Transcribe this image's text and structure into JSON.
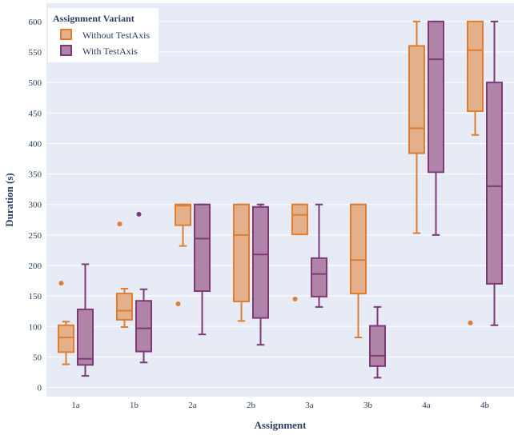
{
  "chart_data": {
    "type": "box",
    "xlabel": "Assignment",
    "ylabel": "Duration (s)",
    "ylim": [
      -15,
      630
    ],
    "yticks": [
      0,
      50,
      100,
      150,
      200,
      250,
      300,
      350,
      400,
      450,
      500,
      550,
      600
    ],
    "categories": [
      "1a",
      "1b",
      "2a",
      "2b",
      "3a",
      "3b",
      "4a",
      "4b"
    ],
    "legend": {
      "title": "Assignment Variant",
      "position": "top-left"
    },
    "grid": true,
    "series": [
      {
        "name": "Without TestAxis",
        "color": "#dd7e32",
        "fill": "#e3b08a",
        "boxes": [
          {
            "min": 38,
            "q1": 58,
            "median": 82,
            "q3": 102,
            "max": 108,
            "outliers": [
              171
            ]
          },
          {
            "min": 99,
            "q1": 111,
            "median": 126,
            "q3": 154,
            "max": 162,
            "outliers": [
              268
            ]
          },
          {
            "min": 232,
            "q1": 266,
            "median": 298,
            "q3": 300,
            "max": 300,
            "outliers": [
              137
            ]
          },
          {
            "min": 109,
            "q1": 141,
            "median": 250,
            "q3": 300,
            "max": 300,
            "outliers": []
          },
          {
            "min": 251,
            "q1": 251,
            "median": 283,
            "q3": 300,
            "max": 300,
            "outliers": [
              145
            ]
          },
          {
            "min": 82,
            "q1": 154,
            "median": 209,
            "q3": 300,
            "max": 300,
            "outliers": []
          },
          {
            "min": 253,
            "q1": 384,
            "median": 425,
            "q3": 560,
            "max": 600,
            "outliers": []
          },
          {
            "min": 414,
            "q1": 453,
            "median": 553,
            "q3": 600,
            "max": 600,
            "outliers": [
              106
            ]
          }
        ]
      },
      {
        "name": "With TestAxis",
        "color": "#7e3a76",
        "fill": "#b083a8",
        "boxes": [
          {
            "min": 19,
            "q1": 37,
            "median": 47,
            "q3": 128,
            "max": 202,
            "outliers": []
          },
          {
            "min": 41,
            "q1": 59,
            "median": 97,
            "q3": 142,
            "max": 161,
            "outliers": [
              284
            ]
          },
          {
            "min": 87,
            "q1": 158,
            "median": 244,
            "q3": 300,
            "max": 300,
            "outliers": []
          },
          {
            "min": 70,
            "q1": 114,
            "median": 218,
            "q3": 296,
            "max": 300,
            "outliers": []
          },
          {
            "min": 132,
            "q1": 149,
            "median": 186,
            "q3": 212,
            "max": 300,
            "outliers": []
          },
          {
            "min": 16,
            "q1": 35,
            "median": 52,
            "q3": 101,
            "max": 132,
            "outliers": []
          },
          {
            "min": 250,
            "q1": 353,
            "median": 538,
            "q3": 600,
            "max": 600,
            "outliers": []
          },
          {
            "min": 102,
            "q1": 170,
            "median": 330,
            "q3": 500,
            "max": 600,
            "outliers": []
          }
        ]
      }
    ]
  }
}
